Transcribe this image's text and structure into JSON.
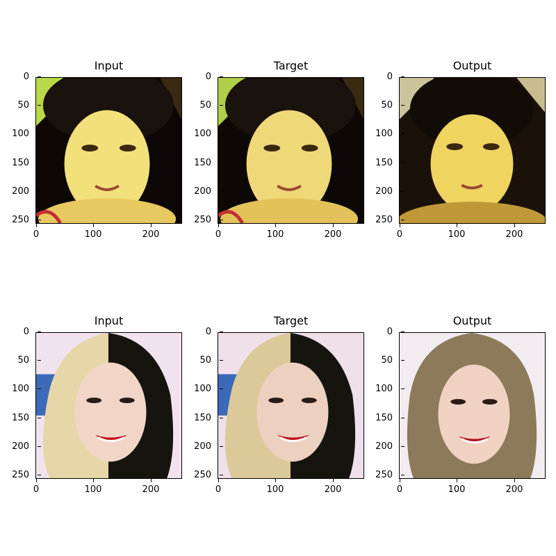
{
  "panels": [
    {
      "title": "Input",
      "subject": "face-1-input"
    },
    {
      "title": "Target",
      "subject": "face-1-target"
    },
    {
      "title": "Output",
      "subject": "face-1-output"
    },
    {
      "title": "Input",
      "subject": "face-2-input"
    },
    {
      "title": "Target",
      "subject": "face-2-target"
    },
    {
      "title": "Output",
      "subject": "face-2-output"
    }
  ],
  "axes": {
    "x_ticks": [
      "0",
      "100",
      "200"
    ],
    "y_ticks": [
      "0",
      "50",
      "100",
      "150",
      "200",
      "250"
    ]
  },
  "colors": {
    "face1_bg": "#b9d84a",
    "face1_skin": "#f2e07a",
    "face1_hair": "#1a120c",
    "face2_bg": "#f1e3ee",
    "face2_skin": "#f1d6c8",
    "face2_blonde": "#e6d6a8",
    "face2_dark": "#16140f",
    "lips": "#c0101c"
  }
}
